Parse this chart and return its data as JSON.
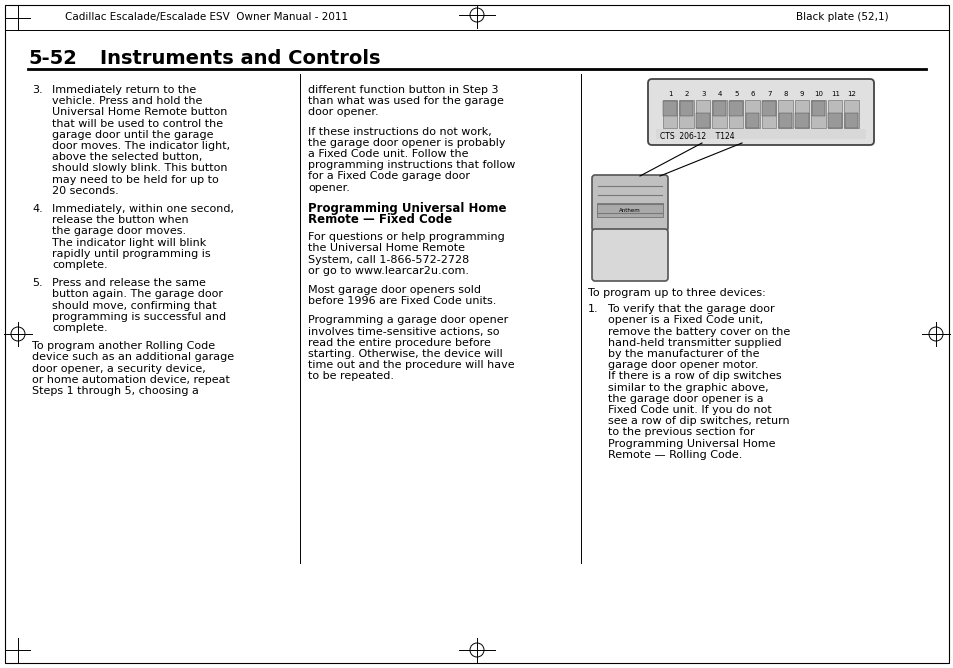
{
  "page_bg": "#ffffff",
  "header_left": "Cadillac Escalade/Escalade ESV  Owner Manual - 2011",
  "header_right": "Black plate (52,1)",
  "section_num": "5-52",
  "section_title": "Instruments and Controls",
  "col1_items": [
    {
      "num": "3.",
      "text": "Immediately return to the\nvehicle. Press and hold the\nUniversal Home Remote button\nthat will be used to control the\ngarage door until the garage\ndoor moves. The indicator light,\nabove the selected button,\nshould slowly blink. This button\nmay need to be held for up to\n20 seconds."
    },
    {
      "num": "4.",
      "text": "Immediately, within one second,\nrelease the button when\nthe garage door moves.\nThe indicator light will blink\nrapidly until programming is\ncomplete."
    },
    {
      "num": "5.",
      "text": "Press and release the same\nbutton again. The garage door\nshould move, confirming that\nprogramming is successful and\ncomplete."
    },
    {
      "num": "",
      "text": "To program another Rolling Code\ndevice such as an additional garage\ndoor opener, a security device,\nor home automation device, repeat\nSteps 1 through 5, choosing a"
    }
  ],
  "col2_items": [
    {
      "bold": false,
      "text": "different function button in Step 3\nthan what was used for the garage\ndoor opener."
    },
    {
      "bold": false,
      "text": "If these instructions do not work,\nthe garage door opener is probably\na Fixed Code unit. Follow the\nprogramming instructions that follow\nfor a Fixed Code garage door\nopener."
    },
    {
      "bold": true,
      "text": "Programming Universal Home\nRemote — Fixed Code"
    },
    {
      "bold": false,
      "text": "For questions or help programming\nthe Universal Home Remote\nSystem, call 1-866-572-2728\nor go to www.learcar2u.com."
    },
    {
      "bold": false,
      "text": "Most garage door openers sold\nbefore 1996 are Fixed Code units."
    },
    {
      "bold": false,
      "text": "Programming a garage door opener\ninvolves time-sensitive actions, so\nread the entire procedure before\nstarting. Otherwise, the device will\ntime out and the procedure will have\nto be repeated."
    }
  ],
  "col3_intro": "To program up to three devices:",
  "col3_item1_text": "To verify that the garage door\nopener is a Fixed Code unit,\nremove the battery cover on the\nhand-held transmitter supplied\nby the manufacturer of the\ngarage door opener motor.\nIf there is a row of dip switches\nsimilar to the graphic above,\nthe garage door opener is a\nFixed Code unit. If you do not\nsee a row of dip switches, return\nto the previous section for\nProgramming Universal Home\nRemote — Rolling Code.",
  "text_color": "#000000",
  "header_fontsize": 7.5,
  "body_fontsize": 8.0,
  "bold_fontsize": 8.5,
  "title_fontsize": 14,
  "lh": 11.2
}
